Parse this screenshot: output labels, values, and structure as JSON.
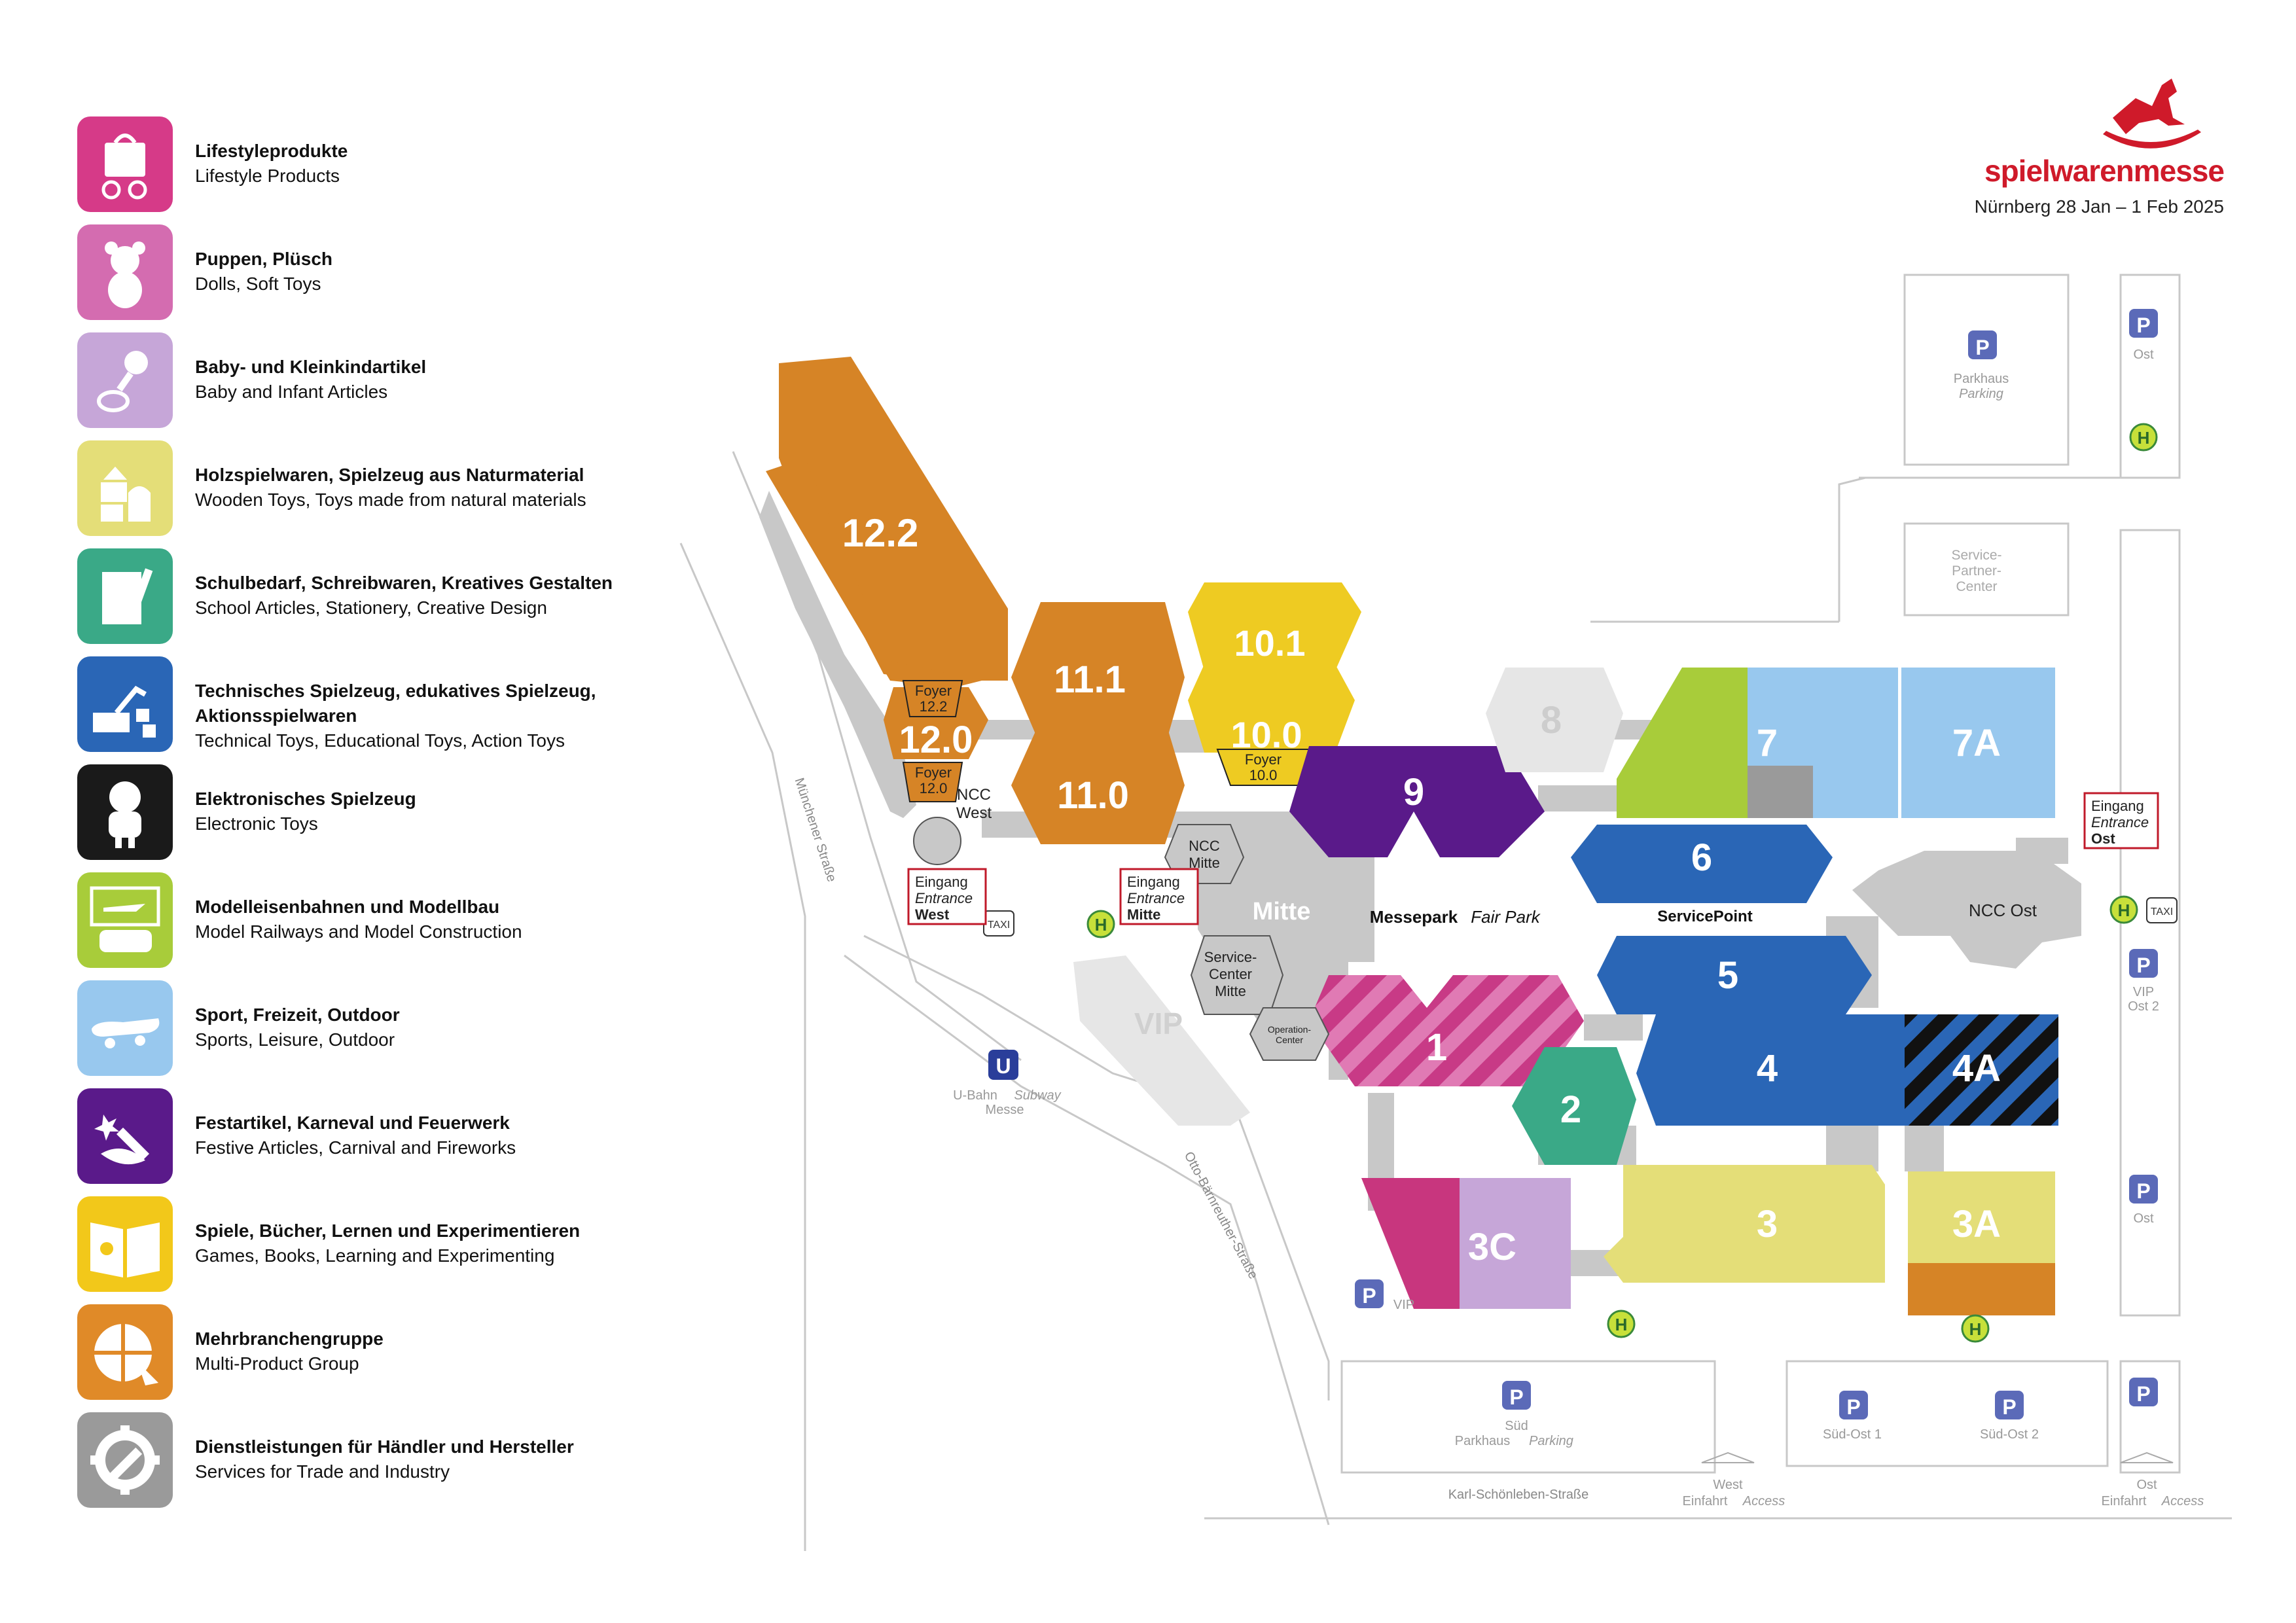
{
  "brand": {
    "name": "spielwarenmesse",
    "date": "Nürnberg 28 Jan – 1 Feb 2025",
    "color": "#cf1a2a"
  },
  "legend": [
    {
      "de": "Lifestyleprodukte",
      "en": "Lifestyle Products",
      "color": "#d63a88",
      "icon": "shopping-bag-glasses-icon"
    },
    {
      "de": "Puppen, Plüsch",
      "en": "Dolls, Soft Toys",
      "color": "#d46cb0",
      "icon": "teddy-bear-icon"
    },
    {
      "de": "Baby- und Kleinkindartikel",
      "en": "Baby and Infant Articles",
      "color": "#c6a6d8",
      "icon": "pacifier-rattle-icon"
    },
    {
      "de": "Holzspielwaren, Spielzeug aus Naturmaterial",
      "en": "Wooden Toys, Toys made from natural materials",
      "color": "#e4de78",
      "icon": "wooden-blocks-icon"
    },
    {
      "de": "Schulbedarf, Schreibwaren, Kreatives Gestalten",
      "en": "School Articles, Stationery, Creative Design",
      "color": "#3aa987",
      "icon": "stationery-icon"
    },
    {
      "de": "Technisches Spielzeug, edukatives Spielzeug, Aktionsspielwaren",
      "en": "Technical Toys, Educational Toys, Action Toys",
      "color": "#2a66b6",
      "icon": "excavator-blocks-icon"
    },
    {
      "de": "Elektronisches Spielzeug",
      "en": "Electronic Toys",
      "color": "#1a1a1a",
      "icon": "robot-icon"
    },
    {
      "de": "Modelleisenbahnen und Modellbau",
      "en": "Model Railways and Model Construction",
      "color": "#a8cc3a",
      "icon": "model-train-plane-icon"
    },
    {
      "de": "Sport, Freizeit, Outdoor",
      "en": "Sports, Leisure, Outdoor",
      "color": "#98c8ee",
      "icon": "skateboard-icon"
    },
    {
      "de": "Festartikel, Karneval und Feuerwerk",
      "en": "Festive Articles, Carnival and Fireworks",
      "color": "#5a1a8a",
      "icon": "fireworks-mask-icon"
    },
    {
      "de": "Spiele, Bücher, Lernen und Experimentieren",
      "en": "Games, Books, Learning and Experimenting",
      "color": "#f2c81a",
      "icon": "book-flask-icon"
    },
    {
      "de": "Mehrbranchengruppe",
      "en": "Multi-Product Group",
      "color": "#e08a28",
      "icon": "multi-product-icon"
    },
    {
      "de": "Dienstleistungen für Händler und Hersteller",
      "en": "Services for Trade and Industry",
      "color": "#9a9a9a",
      "icon": "gear-wrench-icon"
    }
  ],
  "halls": {
    "h12_2": "12.2",
    "h12_0": "12.0",
    "h11_1": "11.1",
    "h11_0": "11.0",
    "h10_1": "10.1",
    "h10_0": "10.0",
    "h9": "9",
    "h8": "8",
    "h7": "7",
    "h7a": "7A",
    "h6": "6",
    "h5": "5",
    "h4": "4",
    "h4a": "4A",
    "h3": "3",
    "h3a": "3A",
    "h3c": "3C",
    "h2": "2",
    "h1": "1",
    "vip": "VIP",
    "mitte": "Mitte"
  },
  "places": {
    "foyer12_2": [
      "Foyer",
      "12.2"
    ],
    "foyer12_0": [
      "Foyer",
      "12.0"
    ],
    "foyer10_0": [
      "Foyer",
      "10.0"
    ],
    "ncc_west": [
      "NCC",
      "West"
    ],
    "ncc_mitte": [
      "NCC",
      "Mitte"
    ],
    "ncc_ost": "NCC Ost",
    "service_center": [
      "Service-",
      "Center",
      "Mitte"
    ],
    "operation_center": [
      "Operation-",
      "Center"
    ],
    "messepark": "Messepark",
    "fairpark": "Fair Park",
    "servicepoint": "ServicePoint",
    "spc": [
      "Service-",
      "Partner-",
      "Center"
    ],
    "parkhaus": "Parkhaus",
    "parking": "Parking",
    "ubahn": "U-Bahn",
    "subway": "Subway",
    "messe": "Messe",
    "ost": "Ost",
    "vip_ost2": [
      "VIP",
      "Ost 2"
    ],
    "vip_small": "VIP",
    "sued": "Süd",
    "sued_ost1": "Süd-Ost 1",
    "sued_ost2": "Süd-Ost 2",
    "west_access": "West",
    "ost_access": "Ost",
    "einfahrt": "Einfahrt",
    "access": "Access",
    "taxi": "TAXI",
    "h_stop": "H",
    "u_stop": "U",
    "p_stop": "P"
  },
  "entrances": {
    "west": {
      "de": "Eingang",
      "en": "Entrance",
      "name": "West"
    },
    "mitte": {
      "de": "Eingang",
      "en": "Entrance",
      "name": "Mitte"
    },
    "ost": {
      "de": "Eingang",
      "en": "Entrance",
      "name": "Ost"
    }
  },
  "streets": {
    "muenchener": "Münchener Straße",
    "otto": "Otto-Bärnreuther-Straße",
    "karl": "Karl-Schönleben-Straße"
  }
}
